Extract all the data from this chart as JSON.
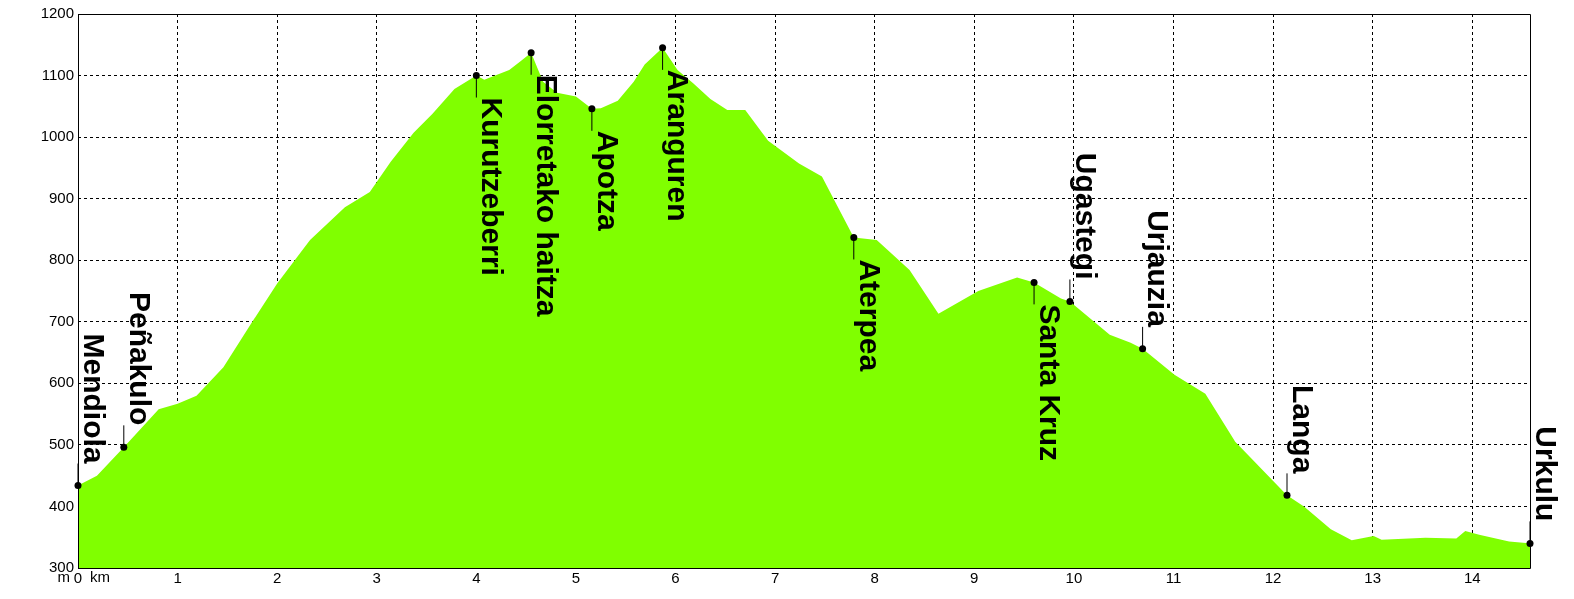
{
  "chart_data": {
    "type": "area",
    "color": "#80ff00",
    "xlabel": "km",
    "ylabel": "m",
    "grid": true,
    "xlim": [
      0,
      14.58
    ],
    "ylim": [
      300,
      1200
    ],
    "xticks": [
      0,
      1,
      2,
      3,
      4,
      5,
      6,
      7,
      8,
      9,
      10,
      11,
      12,
      13,
      14
    ],
    "yticks": [
      300,
      400,
      500,
      600,
      700,
      800,
      900,
      1000,
      1100,
      1200
    ],
    "x": [
      0,
      0.19,
      0.46,
      0.81,
      1.0,
      1.19,
      1.46,
      1.75,
      2.0,
      2.33,
      2.68,
      2.93,
      3.14,
      3.37,
      3.56,
      3.78,
      4.0,
      4.08,
      4.33,
      4.45,
      4.55,
      4.67,
      4.81,
      5.0,
      5.16,
      5.25,
      5.42,
      5.58,
      5.69,
      5.87,
      6.02,
      6.18,
      6.35,
      6.52,
      6.7,
      6.93,
      7.24,
      7.47,
      7.79,
      8.02,
      8.35,
      8.64,
      9.04,
      9.43,
      9.6,
      9.87,
      9.96,
      10.36,
      10.57,
      10.69,
      11.01,
      11.32,
      11.62,
      12.14,
      12.31,
      12.58,
      12.79,
      13.01,
      13.09,
      13.53,
      13.84,
      13.93,
      14.07,
      14.37,
      14.58
    ],
    "values": [
      434,
      450,
      496,
      558,
      567,
      580,
      626,
      700,
      762,
      833,
      886,
      911,
      960,
      1007,
      1038,
      1078,
      1100,
      1093,
      1109,
      1124,
      1137,
      1090,
      1072,
      1066,
      1046,
      1047,
      1059,
      1090,
      1118,
      1145,
      1109,
      1087,
      1062,
      1044,
      1044,
      994,
      957,
      936,
      837,
      833,
      784,
      713,
      750,
      772,
      764,
      738,
      733,
      679,
      666,
      656,
      614,
      583,
      505,
      418,
      400,
      363,
      345,
      352,
      346,
      349,
      348,
      360,
      354,
      343,
      340
    ],
    "annotations": [
      {
        "text": "Mendiola",
        "x": 0,
        "y": 434
      },
      {
        "text": "Peñakulo",
        "x": 0.46,
        "y": 496
      },
      {
        "text": "Kurutzeberri",
        "x": 4.0,
        "y": 1100
      },
      {
        "text": "Elorretako haitza",
        "x": 4.55,
        "y": 1137
      },
      {
        "text": "Apotza",
        "x": 5.16,
        "y": 1046
      },
      {
        "text": "Aranguren",
        "x": 5.87,
        "y": 1145
      },
      {
        "text": "Aterpea",
        "x": 7.79,
        "y": 837
      },
      {
        "text": "Santa Kruz",
        "x": 9.6,
        "y": 764
      },
      {
        "text": "Ugastegi",
        "x": 9.96,
        "y": 733
      },
      {
        "text": "Urjauzia",
        "x": 10.69,
        "y": 656
      },
      {
        "text": "Langa",
        "x": 12.14,
        "y": 418
      },
      {
        "text": "Urkulu",
        "x": 14.58,
        "y": 340
      }
    ]
  }
}
